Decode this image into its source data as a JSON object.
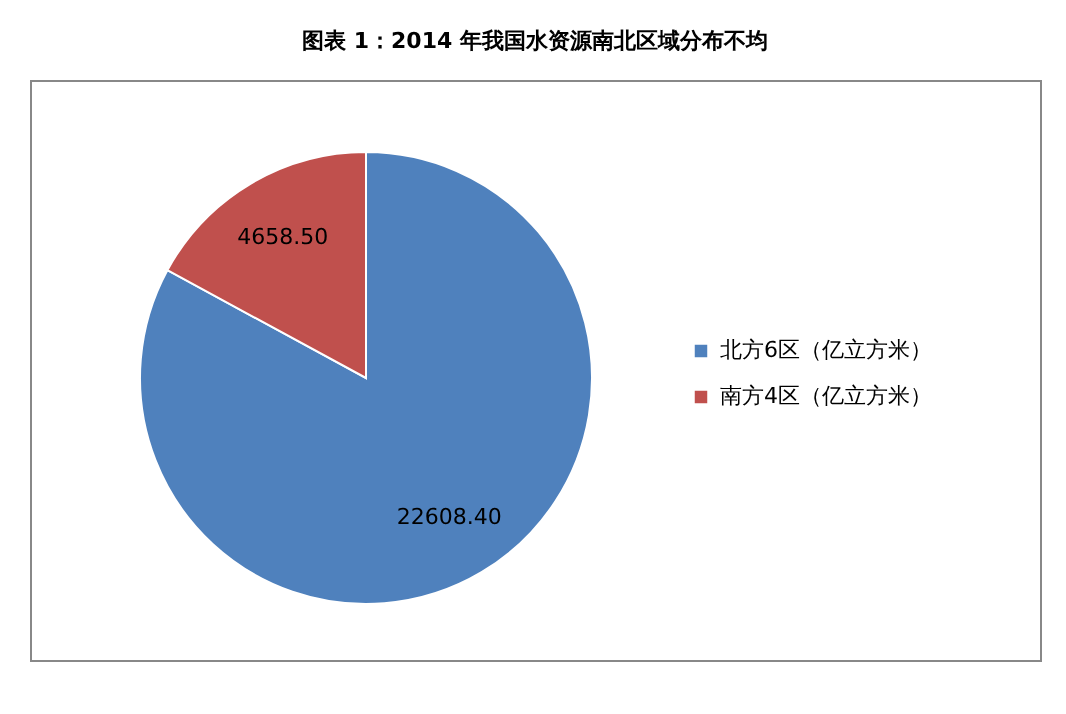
{
  "chart_data": {
    "type": "pie",
    "title": "图表 1：2014 年我国水资源南北区域分布不均",
    "categories": [
      "北方6区（亿立方米）",
      "南方4区（亿立方米）"
    ],
    "values": [
      22608.4,
      4658.5
    ],
    "colors": [
      "#4f81bd",
      "#c0504d"
    ],
    "value_labels": [
      "22608.40",
      "4658.50"
    ],
    "legend": "right"
  }
}
